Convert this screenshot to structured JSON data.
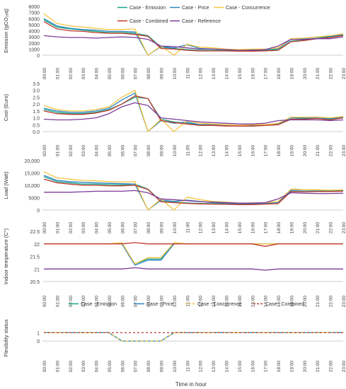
{
  "x_categories": [
    "00:00",
    "01:00",
    "02:00",
    "03:00",
    "04:00",
    "05:00",
    "06:00",
    "07:00",
    "08:00",
    "09:00",
    "10:00",
    "11:00",
    "12:00",
    "13:00",
    "14:00",
    "15:00",
    "16:00",
    "17:00",
    "18:00",
    "19:00",
    "20:00",
    "21:00",
    "22:00",
    "23:00"
  ],
  "x_axis_title": "Time in hour",
  "series_styles": [
    {
      "key": "emission",
      "color": "#17a589"
    },
    {
      "key": "price",
      "color": "#2e86c1"
    },
    {
      "key": "concurrence",
      "color": "#f4c542"
    },
    {
      "key": "combined",
      "color": "#c0392b"
    },
    {
      "key": "reference",
      "color": "#7d3c98"
    }
  ],
  "legend_top": [
    {
      "key": "emission",
      "label": "Case - Emission",
      "color": "#17a589",
      "dashed": false
    },
    {
      "key": "price",
      "label": "Case - Price",
      "color": "#2e86c1",
      "dashed": false
    },
    {
      "key": "concurrence",
      "label": "Case - Concurrence",
      "color": "#f4c542",
      "dashed": false
    },
    {
      "key": "combined",
      "label": "Case - Combined",
      "color": "#c0392b",
      "dashed": false
    },
    {
      "key": "reference",
      "label": "Case - Reference",
      "color": "#7d3c98",
      "dashed": false
    }
  ],
  "legend_bottom": [
    {
      "key": "emission",
      "label": "Case - Emission",
      "color": "#17a589",
      "dashed": false
    },
    {
      "key": "price",
      "label": "Case - Price",
      "color": "#2e86c1",
      "dashed": false
    },
    {
      "key": "concurrence",
      "label": "Case - Concurrence",
      "color": "#f4c542",
      "dashed": true
    },
    {
      "key": "combined",
      "label": "Case - Combined",
      "color": "#c0392b",
      "dashed": true
    }
  ],
  "chart_data": [
    {
      "type": "line",
      "ylabel": "Emission (gCO₂ₑq)",
      "ylim": [
        0,
        8000
      ],
      "yticks": [
        0,
        1000,
        2000,
        3000,
        4000,
        5000,
        6000,
        7000,
        8000
      ],
      "ytick_labels": [
        "0",
        "1000",
        "2000",
        "3000",
        "4000",
        "5000",
        "6000",
        "7000",
        "8000"
      ],
      "grid": false,
      "series": [
        {
          "name": "Case - Emission",
          "values": [
            5800,
            4600,
            4300,
            4100,
            3900,
            3700,
            3700,
            3600,
            3200,
            1300,
            1100,
            900,
            800,
            800,
            750,
            700,
            700,
            800,
            900,
            2300,
            2500,
            2800,
            3000,
            3300
          ]
        },
        {
          "name": "Case - Price",
          "values": [
            6000,
            4800,
            4400,
            4200,
            4100,
            3900,
            3900,
            3800,
            0,
            1400,
            1200,
            1700,
            1100,
            1000,
            900,
            800,
            900,
            900,
            1100,
            2600,
            2700,
            3000,
            3100,
            3400
          ]
        },
        {
          "name": "Case - Concurrence",
          "values": [
            6800,
            5200,
            4800,
            4600,
            4400,
            4200,
            4200,
            4300,
            0,
            1500,
            0,
            1800,
            1300,
            1200,
            1000,
            900,
            1000,
            1000,
            1200,
            2700,
            2800,
            3000,
            3200,
            3500
          ]
        },
        {
          "name": "Case - Combined",
          "values": [
            5500,
            4300,
            4000,
            3900,
            3700,
            3600,
            3600,
            3400,
            3100,
            1100,
            1000,
            800,
            700,
            700,
            700,
            650,
            650,
            700,
            800,
            2200,
            2400,
            2700,
            2900,
            3200
          ]
        },
        {
          "name": "Case - Reference",
          "values": [
            3200,
            3000,
            2900,
            2900,
            2800,
            2900,
            3000,
            2900,
            2600,
            1500,
            1400,
            1200,
            1000,
            1000,
            900,
            800,
            800,
            900,
            1500,
            2600,
            2600,
            2700,
            2700,
            3000
          ]
        }
      ]
    },
    {
      "type": "line",
      "ylabel": "Cost (Euro)",
      "ylim": [
        0,
        3.5
      ],
      "yticks": [
        0,
        0.5,
        1,
        1.5,
        2,
        2.5,
        3,
        3.5
      ],
      "ytick_labels": [
        "0.0",
        "0.5",
        "1.0",
        "1.5",
        "2.0",
        "2.5",
        "3.0",
        "3.5"
      ],
      "grid": false,
      "series": [
        {
          "name": "Case - Emission",
          "values": [
            1.6,
            1.4,
            1.3,
            1.3,
            1.4,
            1.6,
            2.0,
            2.5,
            2.4,
            0.9,
            0.7,
            0.6,
            0.5,
            0.5,
            0.45,
            0.4,
            0.4,
            0.45,
            0.5,
            0.9,
            0.95,
            0.95,
            0.9,
            1.0
          ]
        },
        {
          "name": "Case - Price",
          "values": [
            1.7,
            1.5,
            1.4,
            1.4,
            1.5,
            1.7,
            2.3,
            2.8,
            0.0,
            0.8,
            0.6,
            0.7,
            0.5,
            0.5,
            0.45,
            0.4,
            0.45,
            0.45,
            0.55,
            1.0,
            1.0,
            1.0,
            0.95,
            1.05
          ]
        },
        {
          "name": "Case - Concurrence",
          "values": [
            1.9,
            1.6,
            1.5,
            1.5,
            1.6,
            1.8,
            2.5,
            3.0,
            0.0,
            0.9,
            0.0,
            0.8,
            0.6,
            0.55,
            0.5,
            0.45,
            0.5,
            0.5,
            0.6,
            1.05,
            1.05,
            1.05,
            1.0,
            1.1
          ]
        },
        {
          "name": "Case - Combined",
          "values": [
            1.5,
            1.3,
            1.25,
            1.25,
            1.35,
            1.55,
            2.0,
            2.6,
            2.4,
            0.8,
            0.65,
            0.55,
            0.45,
            0.45,
            0.4,
            0.4,
            0.4,
            0.45,
            0.5,
            0.9,
            0.9,
            0.95,
            0.85,
            1.0
          ]
        },
        {
          "name": "Case - Reference",
          "values": [
            0.9,
            0.85,
            0.85,
            0.9,
            1.0,
            1.3,
            1.8,
            2.1,
            1.9,
            1.0,
            0.9,
            0.8,
            0.7,
            0.65,
            0.6,
            0.55,
            0.55,
            0.6,
            0.8,
            0.85,
            0.85,
            0.85,
            0.8,
            0.85
          ]
        }
      ]
    },
    {
      "type": "line",
      "ylabel": "Load (Watt)",
      "ylim": [
        0,
        20000
      ],
      "yticks": [
        0,
        5000,
        10000,
        15000,
        20000
      ],
      "ytick_labels": [
        "0",
        "5000",
        "10,000",
        "15,000",
        "20,000"
      ],
      "grid": false,
      "series": [
        {
          "name": "Case - Emission",
          "values": [
            13500,
            11500,
            11000,
            10500,
            10500,
            10300,
            10200,
            10500,
            8500,
            3500,
            3200,
            2900,
            2700,
            2600,
            2500,
            2300,
            2300,
            2500,
            2700,
            7600,
            7500,
            7600,
            7700,
            7800
          ]
        },
        {
          "name": "Case - Price",
          "values": [
            14000,
            12000,
            11500,
            11200,
            11000,
            10800,
            10700,
            10500,
            0,
            4000,
            3500,
            4000,
            3500,
            3000,
            2800,
            2500,
            2600,
            2700,
            3000,
            8000,
            8000,
            8000,
            8000,
            8000
          ]
        },
        {
          "name": "Case - Concurrence",
          "values": [
            15500,
            13000,
            12500,
            12000,
            11800,
            11500,
            11300,
            11500,
            0,
            4500,
            0,
            5200,
            4200,
            3500,
            3200,
            2800,
            2900,
            3000,
            3500,
            8500,
            8200,
            8200,
            8000,
            8200
          ]
        },
        {
          "name": "Case - Combined",
          "values": [
            12500,
            11000,
            10500,
            10000,
            10000,
            9800,
            9800,
            10000,
            8300,
            3300,
            3000,
            2700,
            2500,
            2400,
            2300,
            2200,
            2200,
            2400,
            2600,
            7500,
            7400,
            7500,
            7500,
            7600
          ]
        },
        {
          "name": "Case - Reference",
          "values": [
            7200,
            7200,
            7200,
            7400,
            7600,
            7600,
            7600,
            7900,
            7000,
            4500,
            4200,
            3800,
            3400,
            3200,
            3000,
            2800,
            2800,
            3000,
            4500,
            7000,
            6800,
            6700,
            6700,
            6800
          ]
        }
      ]
    },
    {
      "type": "line",
      "ylabel": "Indoor temperature (C°)",
      "ylim": [
        20.5,
        22.5
      ],
      "yticks": [
        20.5,
        21,
        21.5,
        22,
        22.5
      ],
      "ytick_labels": [
        "20.5",
        "21",
        "21.5",
        "22",
        "22.5"
      ],
      "grid": false,
      "series": [
        {
          "name": "Case - Emission",
          "values": [
            22,
            22,
            22,
            22,
            22,
            22,
            22,
            21.2,
            21.4,
            21.4,
            22,
            22,
            22,
            22,
            22,
            22,
            22,
            22,
            22,
            22,
            22,
            22,
            22,
            22
          ]
        },
        {
          "name": "Case - Price",
          "values": [
            22,
            22,
            22,
            22,
            22,
            22,
            22,
            21.15,
            21.35,
            21.35,
            22,
            22,
            22,
            22,
            22,
            22,
            22,
            22,
            22,
            22,
            22,
            22,
            22,
            22
          ]
        },
        {
          "name": "Case - Concurrence",
          "values": [
            22,
            22,
            22,
            22,
            22,
            22,
            22.05,
            21.2,
            21.45,
            21.45,
            22.05,
            22,
            22,
            22,
            22,
            22,
            22,
            22,
            22,
            22,
            22,
            22,
            22,
            22
          ]
        },
        {
          "name": "Case - Combined",
          "values": [
            22,
            22,
            22,
            22,
            22,
            22,
            22,
            22.05,
            22,
            22,
            22,
            22,
            22,
            22,
            22,
            22,
            22,
            21.9,
            22,
            22,
            22,
            22,
            22,
            22
          ]
        },
        {
          "name": "Case - Reference",
          "values": [
            21,
            21,
            21,
            21,
            21,
            21,
            21,
            21.05,
            21,
            21,
            21,
            21,
            21,
            21,
            21,
            21,
            21,
            20.95,
            21,
            21,
            21,
            21,
            21,
            21
          ]
        }
      ]
    },
    {
      "type": "line",
      "ylabel": "Flexibility status",
      "ylim": [
        -0.5,
        1.2
      ],
      "yticks": [
        0,
        1
      ],
      "ytick_labels": [
        "0",
        "1"
      ],
      "grid": false,
      "series": [
        {
          "name": "Case - Emission",
          "values": [
            1,
            1,
            1,
            1,
            1,
            1,
            0,
            0,
            0,
            0,
            1,
            1,
            1,
            1,
            1,
            1,
            1,
            1,
            1,
            1,
            1,
            1,
            1,
            1
          ]
        },
        {
          "name": "Case - Price",
          "values": [
            1,
            1,
            1,
            1,
            1,
            1,
            0,
            0,
            0,
            0,
            1,
            1,
            1,
            1,
            1,
            1,
            1,
            1,
            1,
            1,
            1,
            1,
            1,
            1
          ]
        },
        {
          "name": "Case - Concurrence",
          "values": [
            1,
            1,
            1,
            1,
            1,
            1,
            0,
            0,
            0,
            0,
            1,
            1,
            1,
            1,
            1,
            1,
            1,
            1,
            1,
            1,
            1,
            1,
            1,
            1
          ]
        },
        {
          "name": "Case - Combined",
          "values": [
            1,
            1,
            1,
            1,
            1,
            1,
            1,
            1,
            1,
            1,
            1,
            1,
            1,
            1,
            1,
            1,
            1,
            1,
            1,
            1,
            1,
            1,
            1,
            1
          ]
        }
      ]
    }
  ]
}
